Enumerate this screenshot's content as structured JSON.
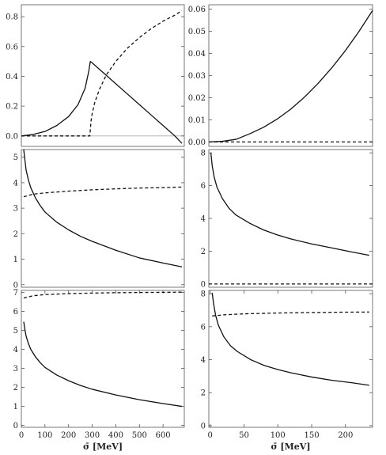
{
  "chart_data": [
    {
      "type": "line",
      "ylim": [
        -0.07,
        0.88
      ],
      "xlim": [
        0,
        690
      ],
      "yticks": [
        "0.0",
        "0.2",
        "0.4",
        "0.6",
        "0.8"
      ],
      "ytick_values": [
        0,
        0.2,
        0.4,
        0.6,
        0.8
      ],
      "zero_line": true,
      "series": [
        {
          "style": "solid",
          "x": [
            0,
            50,
            100,
            150,
            200,
            240,
            270,
            285,
            292,
            300,
            350,
            400,
            450,
            500,
            550,
            600,
            650,
            680
          ],
          "y": [
            0,
            0.01,
            0.03,
            0.07,
            0.13,
            0.21,
            0.32,
            0.43,
            0.5,
            0.49,
            0.42,
            0.35,
            0.28,
            0.21,
            0.14,
            0.07,
            0.0,
            -0.05
          ]
        },
        {
          "style": "dashed",
          "x": [
            0,
            100,
            200,
            290,
            292,
            295,
            300,
            310,
            330,
            360,
            400,
            450,
            500,
            550,
            600,
            650,
            680
          ],
          "y": [
            0,
            0,
            0,
            0,
            0.04,
            0.1,
            0.15,
            0.22,
            0.31,
            0.41,
            0.5,
            0.59,
            0.66,
            0.72,
            0.77,
            0.81,
            0.84
          ]
        }
      ]
    },
    {
      "type": "line",
      "ylim": [
        -0.002,
        0.062
      ],
      "xlim": [
        0,
        240
      ],
      "yticks": [
        "0.00",
        "0.01",
        "0.02",
        "0.03",
        "0.04",
        "0.05",
        "0.06"
      ],
      "ytick_values": [
        0,
        0.01,
        0.02,
        0.03,
        0.04,
        0.05,
        0.06
      ],
      "series": [
        {
          "style": "solid",
          "x": [
            0,
            20,
            40,
            60,
            80,
            100,
            120,
            140,
            160,
            180,
            200,
            220,
            240
          ],
          "y": [
            0,
            0.0003,
            0.0012,
            0.0037,
            0.0066,
            0.0103,
            0.0148,
            0.0202,
            0.0264,
            0.0334,
            0.0412,
            0.0499,
            0.0594
          ]
        },
        {
          "style": "dashed",
          "x": [
            0,
            240
          ],
          "y": [
            0,
            0
          ]
        }
      ]
    },
    {
      "type": "line",
      "ylim": [
        -0.1,
        5.3
      ],
      "xlim": [
        0,
        690
      ],
      "yticks": [
        "0",
        "1",
        "2",
        "3",
        "4",
        "5"
      ],
      "ytick_values": [
        0,
        1,
        2,
        3,
        4,
        5
      ],
      "series": [
        {
          "style": "solid",
          "x": [
            10,
            15,
            20,
            30,
            40,
            60,
            80,
            100,
            150,
            200,
            250,
            300,
            400,
            500,
            600,
            680
          ],
          "y": [
            5.3,
            4.9,
            4.5,
            4.1,
            3.8,
            3.4,
            3.1,
            2.85,
            2.45,
            2.15,
            1.9,
            1.7,
            1.35,
            1.05,
            0.85,
            0.7
          ]
        },
        {
          "style": "dashed",
          "x": [
            10,
            50,
            100,
            200,
            300,
            400,
            500,
            600,
            680
          ],
          "y": [
            3.45,
            3.55,
            3.6,
            3.67,
            3.72,
            3.76,
            3.79,
            3.81,
            3.83
          ]
        }
      ]
    },
    {
      "type": "line",
      "ylim": [
        -0.2,
        8.2
      ],
      "xlim": [
        0,
        240
      ],
      "yticks": [
        "0",
        "2",
        "4",
        "6",
        "8"
      ],
      "ytick_values": [
        0,
        2,
        4,
        6,
        8
      ],
      "series": [
        {
          "style": "solid",
          "x": [
            3,
            5,
            8,
            12,
            20,
            30,
            40,
            60,
            80,
            100,
            120,
            150,
            180,
            210,
            235
          ],
          "y": [
            8.0,
            7.2,
            6.5,
            5.9,
            5.2,
            4.6,
            4.2,
            3.7,
            3.3,
            3.0,
            2.75,
            2.45,
            2.2,
            1.95,
            1.75
          ]
        },
        {
          "style": "dashed",
          "x": [
            0,
            240
          ],
          "y": [
            0,
            0
          ]
        }
      ]
    },
    {
      "type": "line",
      "ylim": [
        -0.1,
        7.1
      ],
      "xlim": [
        0,
        690
      ],
      "xticks": [
        "0",
        "100",
        "200",
        "300",
        "400",
        "500",
        "600"
      ],
      "xtick_values": [
        0,
        100,
        200,
        300,
        400,
        500,
        600
      ],
      "xlabel": "σ̄ [MeV]",
      "yticks": [
        "0",
        "1",
        "2",
        "3",
        "4",
        "5",
        "6",
        "7"
      ],
      "ytick_values": [
        0,
        1,
        2,
        3,
        4,
        5,
        6,
        7
      ],
      "series": [
        {
          "style": "solid",
          "x": [
            10,
            15,
            20,
            30,
            40,
            60,
            80,
            100,
            150,
            200,
            250,
            300,
            400,
            500,
            600,
            680
          ],
          "y": [
            5.45,
            5.05,
            4.7,
            4.3,
            4.0,
            3.6,
            3.3,
            3.05,
            2.65,
            2.35,
            2.1,
            1.9,
            1.6,
            1.35,
            1.15,
            1.0
          ]
        },
        {
          "style": "dashed",
          "x": [
            10,
            50,
            100,
            200,
            300,
            400,
            500,
            600,
            680
          ],
          "y": [
            6.7,
            6.82,
            6.88,
            6.93,
            6.96,
            6.98,
            6.99,
            7.0,
            7.01
          ]
        }
      ]
    },
    {
      "type": "line",
      "ylim": [
        -0.1,
        8.2
      ],
      "xlim": [
        -2,
        240
      ],
      "xticks": [
        "0",
        "50",
        "100",
        "150",
        "200"
      ],
      "xtick_values": [
        0,
        50,
        100,
        150,
        200
      ],
      "xlabel": "σ̄ [MeV]",
      "yticks": [
        "0",
        "2",
        "4",
        "6",
        "8"
      ],
      "ytick_values": [
        0,
        2,
        4,
        6,
        8
      ],
      "series": [
        {
          "style": "solid",
          "x": [
            3,
            5,
            8,
            12,
            20,
            30,
            40,
            60,
            80,
            100,
            120,
            150,
            180,
            210,
            235
          ],
          "y": [
            8.05,
            7.4,
            6.7,
            6.1,
            5.4,
            4.85,
            4.5,
            4.0,
            3.65,
            3.4,
            3.2,
            2.95,
            2.75,
            2.6,
            2.45
          ]
        },
        {
          "style": "dashed",
          "x": [
            3,
            20,
            50,
            100,
            150,
            200,
            235
          ],
          "y": [
            6.65,
            6.72,
            6.78,
            6.83,
            6.86,
            6.88,
            6.89
          ]
        }
      ]
    }
  ]
}
